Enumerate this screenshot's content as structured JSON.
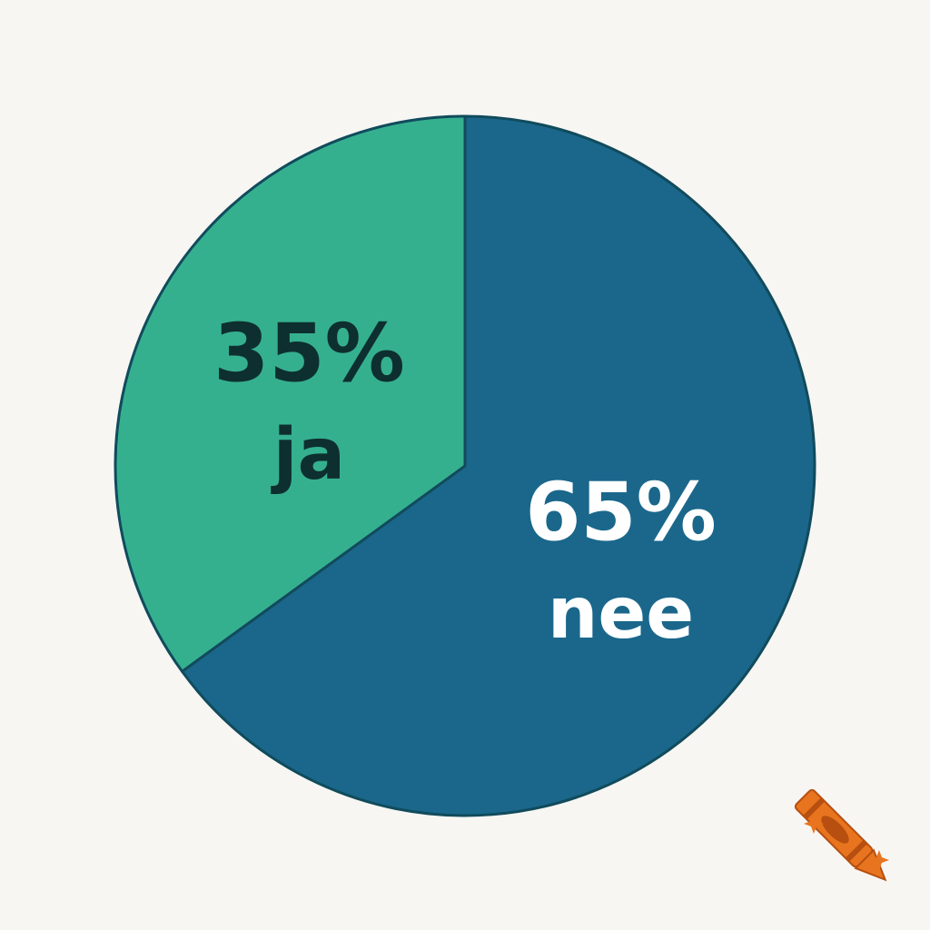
{
  "chart_data": {
    "type": "pie",
    "categories": [
      "ja",
      "nee"
    ],
    "values": [
      35,
      65
    ],
    "value_labels": [
      "35%",
      "65%"
    ],
    "colors": [
      "#35b08f",
      "#1a678b"
    ]
  }
}
